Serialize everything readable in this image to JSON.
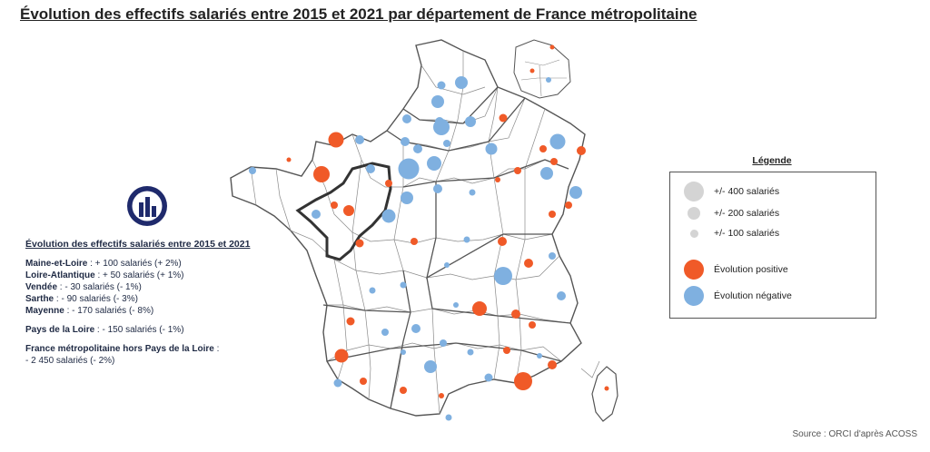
{
  "title": "Évolution des effectifs salariés entre 2015 et 2021 par département de France métropolitaine",
  "stats": {
    "title": "Évolution des effectifs salariés entre 2015 et 2021",
    "departments": [
      {
        "name": "Maine-et-Loire",
        "value": " : + 100 salariés (+ 2%)"
      },
      {
        "name": "Loire-Atlantique",
        "value": " : + 50 salariés (+ 1%)"
      },
      {
        "name": "Vendée",
        "value": " : - 30 salariés (- 1%)"
      },
      {
        "name": "Sarthe",
        "value": " : - 90 salariés (- 3%)"
      },
      {
        "name": "Mayenne",
        "value": " : - 170 salariés (- 8%)"
      }
    ],
    "region": {
      "name": "Pays de la Loire",
      "value": " : - 150 salariés (- 1%)"
    },
    "france": {
      "name": "France métropolitaine hors Pays de la Loire",
      "suffix": " :",
      "value": "- 2 450 salariés (- 2%)"
    }
  },
  "legend": {
    "title": "Légende",
    "sizes": [
      {
        "label": "+/- 400 salariés"
      },
      {
        "label": "+/- 200 salariés"
      },
      {
        "label": "+/- 100 salariés"
      }
    ],
    "colors": [
      {
        "label": "Évolution positive",
        "color": "#f05a28"
      },
      {
        "label": "Évolution négative",
        "color": "#7fb0e0"
      }
    ],
    "size_color": "#d4d4d4"
  },
  "source": "Source : ORCI d'après ACOSS",
  "map_colors": {
    "positive": "#f05a28",
    "negative": "#7fb0e0",
    "border": "#8a8a8a",
    "highlight": "#333333"
  }
}
